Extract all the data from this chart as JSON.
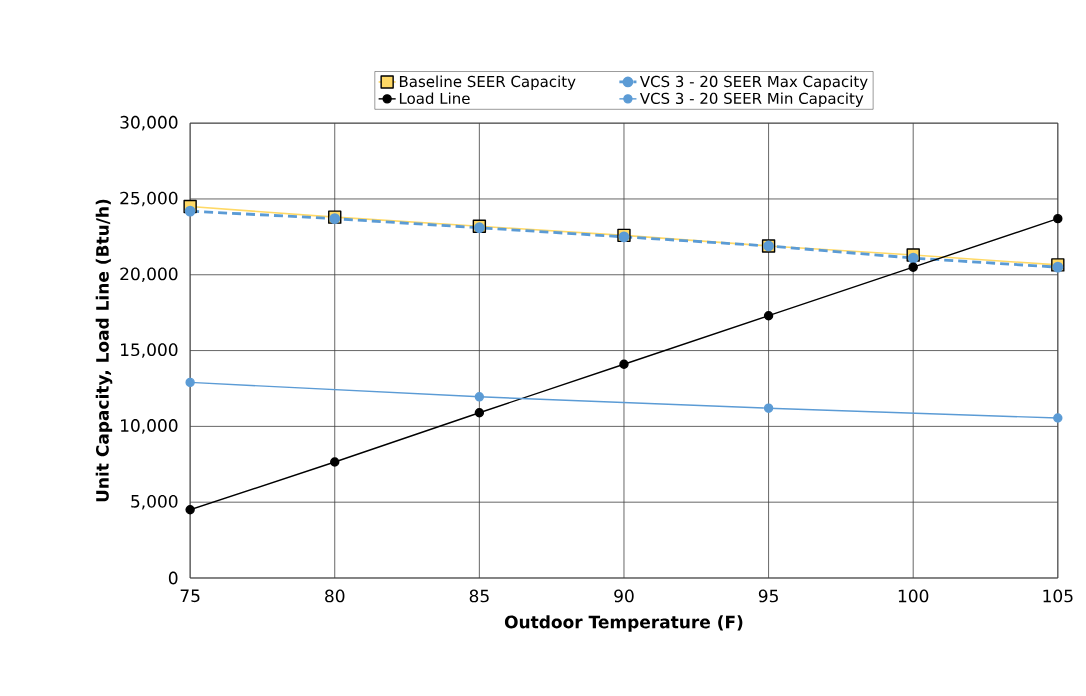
{
  "chart_data": {
    "type": "line",
    "xlabel": "Outdoor Temperature (F)",
    "ylabel": "Unit Capacity, Load Line (Btu/h)",
    "xlim": [
      75,
      105
    ],
    "xticks": [
      75,
      80,
      85,
      90,
      95,
      100,
      105
    ],
    "ylim": [
      0,
      30000
    ],
    "yticks": [
      {
        "value": 0,
        "label": "0"
      },
      {
        "value": 5000,
        "label": "5,000"
      },
      {
        "value": 10000,
        "label": "10,000"
      },
      {
        "value": 15000,
        "label": "15,000"
      },
      {
        "value": 20000,
        "label": "20,000"
      },
      {
        "value": 25000,
        "label": "25,000"
      },
      {
        "value": 30000,
        "label": "30,000"
      }
    ],
    "grid": true,
    "legend": "top",
    "series": [
      {
        "name": "Baseline SEER Capacity",
        "color": "#ffd966",
        "marker": "square",
        "line_style": "solid",
        "x": [
          75,
          80,
          85,
          90,
          95,
          100,
          105
        ],
        "values": [
          24500,
          23800,
          23200,
          22600,
          21900,
          21300,
          20650
        ]
      },
      {
        "name": "VCS 3 - 20 SEER Max Capacity",
        "color": "#5b9bd5",
        "marker": "circle",
        "line_style": "dashed",
        "x": [
          75,
          80,
          85,
          90,
          95,
          100,
          105
        ],
        "values": [
          24200,
          23700,
          23100,
          22500,
          21900,
          21100,
          20500
        ]
      },
      {
        "name": "Load Line",
        "color": "#000000",
        "marker": "circle",
        "line_style": "solid",
        "x": [
          75,
          80,
          85,
          90,
          95,
          100,
          105
        ],
        "values": [
          4500,
          7650,
          10900,
          14100,
          17300,
          20500,
          23700
        ]
      },
      {
        "name": "VCS 3 - 20 SEER Min Capacity",
        "color": "#5b9bd5",
        "marker": "circle",
        "line_style": "solid",
        "x": [
          75,
          85,
          95,
          105
        ],
        "values": [
          12900,
          11950,
          11200,
          10550
        ]
      }
    ]
  }
}
